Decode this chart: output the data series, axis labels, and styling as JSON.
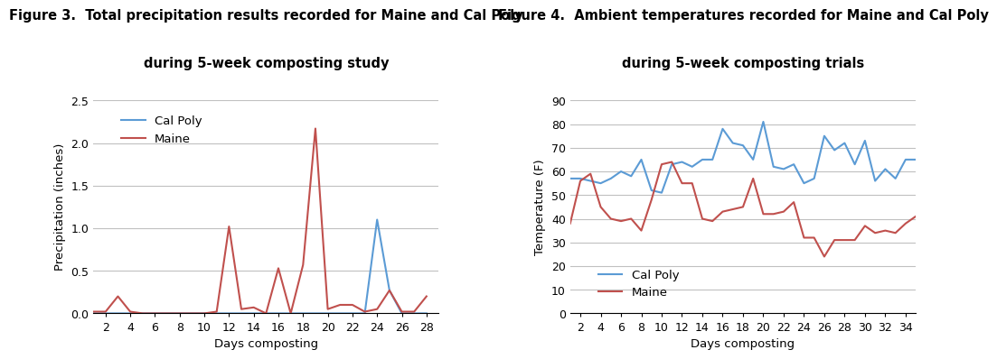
{
  "fig3": {
    "title_line1": "Figure 3.  Total precipitation results recorded for Maine and Cal Poly",
    "title_line2": "during 5-week composting study",
    "xlabel": "Days composting",
    "ylabel": "Precipitation (inches)",
    "xlim": [
      1,
      29
    ],
    "ylim": [
      0,
      2.5
    ],
    "xticks": [
      2,
      4,
      6,
      8,
      10,
      12,
      14,
      16,
      18,
      20,
      22,
      24,
      26,
      28
    ],
    "yticks": [
      0,
      0.5,
      1.0,
      1.5,
      2.0,
      2.5
    ],
    "cal_poly": {
      "x": [
        1,
        2,
        3,
        4,
        5,
        6,
        7,
        8,
        9,
        10,
        11,
        12,
        13,
        14,
        15,
        16,
        17,
        18,
        19,
        20,
        21,
        22,
        23,
        24,
        25,
        26,
        27,
        28
      ],
      "y": [
        0,
        0,
        0,
        0,
        0,
        0,
        0,
        0,
        0,
        0,
        0,
        0,
        0,
        0,
        0,
        0,
        0,
        0,
        0,
        0,
        0,
        0,
        0,
        1.1,
        0.27,
        0,
        0,
        0
      ],
      "color": "#5b9bd5",
      "label": "Cal Poly"
    },
    "maine": {
      "x": [
        1,
        2,
        3,
        4,
        5,
        6,
        7,
        8,
        9,
        10,
        11,
        12,
        13,
        14,
        15,
        16,
        17,
        18,
        19,
        20,
        21,
        22,
        23,
        24,
        25,
        26,
        27,
        28
      ],
      "y": [
        0.02,
        0.02,
        0.2,
        0.02,
        0.0,
        0.0,
        0.0,
        0.0,
        0.0,
        0.0,
        0.02,
        1.02,
        0.05,
        0.07,
        0.0,
        0.53,
        0.0,
        0.57,
        2.17,
        0.05,
        0.1,
        0.1,
        0.02,
        0.05,
        0.27,
        0.02,
        0.02,
        0.2
      ],
      "color": "#c0504d",
      "label": "Maine"
    }
  },
  "fig4": {
    "title_line1": "Figure 4.  Ambient temperatures recorded for Maine and Cal Poly",
    "title_line2": "during 5-week composting trials",
    "xlabel": "Days composting",
    "ylabel": "Temperature (F)",
    "xlim": [
      1,
      35
    ],
    "ylim": [
      0,
      90
    ],
    "xticks": [
      2,
      4,
      6,
      8,
      10,
      12,
      14,
      16,
      18,
      20,
      22,
      24,
      26,
      28,
      30,
      32,
      34
    ],
    "yticks": [
      0,
      10,
      20,
      30,
      40,
      50,
      60,
      70,
      80,
      90
    ],
    "cal_poly": {
      "x": [
        1,
        2,
        3,
        4,
        5,
        6,
        7,
        8,
        9,
        10,
        11,
        12,
        13,
        14,
        15,
        16,
        17,
        18,
        19,
        20,
        21,
        22,
        23,
        24,
        25,
        26,
        27,
        28,
        29,
        30,
        31,
        32,
        33,
        34,
        35
      ],
      "y": [
        57,
        57,
        56,
        55,
        57,
        60,
        58,
        65,
        52,
        51,
        63,
        64,
        62,
        65,
        65,
        78,
        72,
        71,
        65,
        81,
        62,
        61,
        63,
        55,
        57,
        75,
        69,
        72,
        63,
        73,
        56,
        61,
        57,
        65,
        65
      ],
      "color": "#5b9bd5",
      "label": "Cal Poly"
    },
    "maine": {
      "x": [
        1,
        2,
        3,
        4,
        5,
        6,
        7,
        8,
        9,
        10,
        11,
        12,
        13,
        14,
        15,
        16,
        17,
        18,
        19,
        20,
        21,
        22,
        23,
        24,
        25,
        26,
        27,
        28,
        29,
        30,
        31,
        32,
        33,
        34,
        35
      ],
      "y": [
        38,
        56,
        59,
        45,
        40,
        39,
        40,
        35,
        48,
        63,
        64,
        55,
        55,
        40,
        39,
        43,
        44,
        45,
        57,
        42,
        42,
        43,
        47,
        32,
        32,
        24,
        31,
        31,
        31,
        37,
        34,
        35,
        34,
        38,
        41
      ],
      "color": "#c0504d",
      "label": "Maine"
    }
  },
  "background_color": "#ffffff",
  "grid_color": "#c0c0c0",
  "title_fontsize": 10.5,
  "axis_label_fontsize": 9.5,
  "tick_fontsize": 9,
  "legend_fontsize": 9.5
}
